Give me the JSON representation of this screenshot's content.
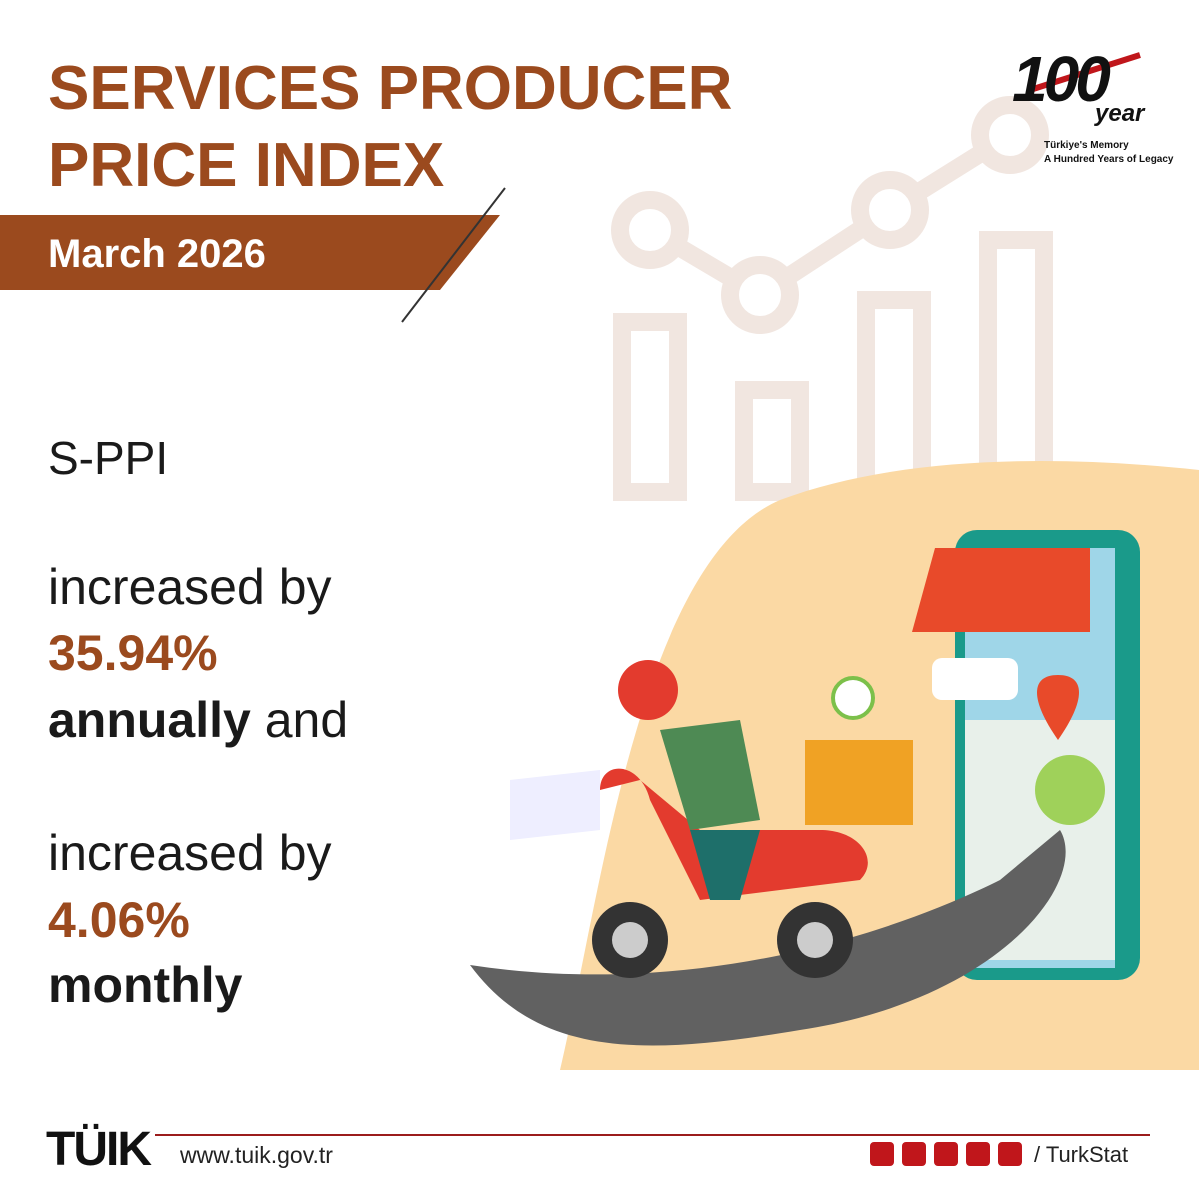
{
  "header": {
    "title_lines": [
      "SERVICES PRODUCER",
      "PRICE INDEX"
    ],
    "period": "March 2026"
  },
  "badge": {
    "number": "100",
    "word": "year",
    "lines": [
      "Türkiye's Memory",
      "A Hundred Years of Legacy"
    ]
  },
  "body": {
    "indicator": "S-PPI",
    "statements": [
      {
        "verb": "increased by",
        "value": "35.94%",
        "period": "annually",
        "tail": "and"
      },
      {
        "verb": "increased by",
        "value": "4.06%",
        "period": "monthly"
      }
    ]
  },
  "footer": {
    "logo": "TÜIK",
    "url": "www.tuik.gov.tr",
    "handle": "/ TurkStat"
  }
}
